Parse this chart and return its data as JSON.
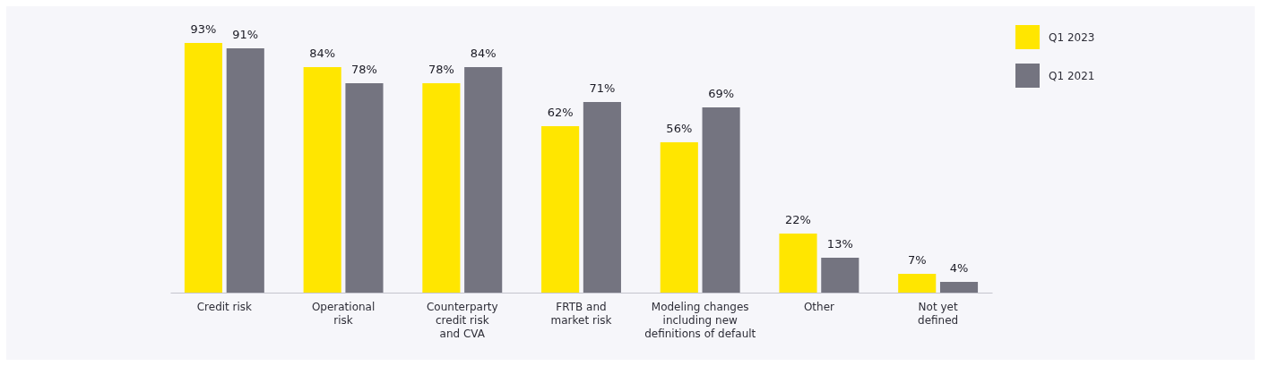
{
  "chart_data": {
    "type": "bar",
    "categories": [
      "Credit risk",
      "Operational\nrisk",
      "Counterparty\ncredit risk\nand CVA",
      "FRTB and\nmarket risk",
      "Modeling changes\nincluding new\ndefinitions of default",
      "Other",
      "Not yet\ndefined"
    ],
    "series": [
      {
        "name": "Q1 2023",
        "color": "#ffe600",
        "values": [
          93,
          84,
          78,
          62,
          56,
          22,
          7
        ],
        "value_labels": [
          "93%",
          "84%",
          "78%",
          "62%",
          "56%",
          "22%",
          "7%"
        ]
      },
      {
        "name": "Q1 2021",
        "color": "#747480",
        "values": [
          91,
          78,
          84,
          71,
          69,
          13,
          4
        ],
        "value_labels": [
          "91%",
          "78%",
          "84%",
          "71%",
          "69%",
          "13%",
          "4%"
        ]
      }
    ],
    "legend": "top right"
  }
}
